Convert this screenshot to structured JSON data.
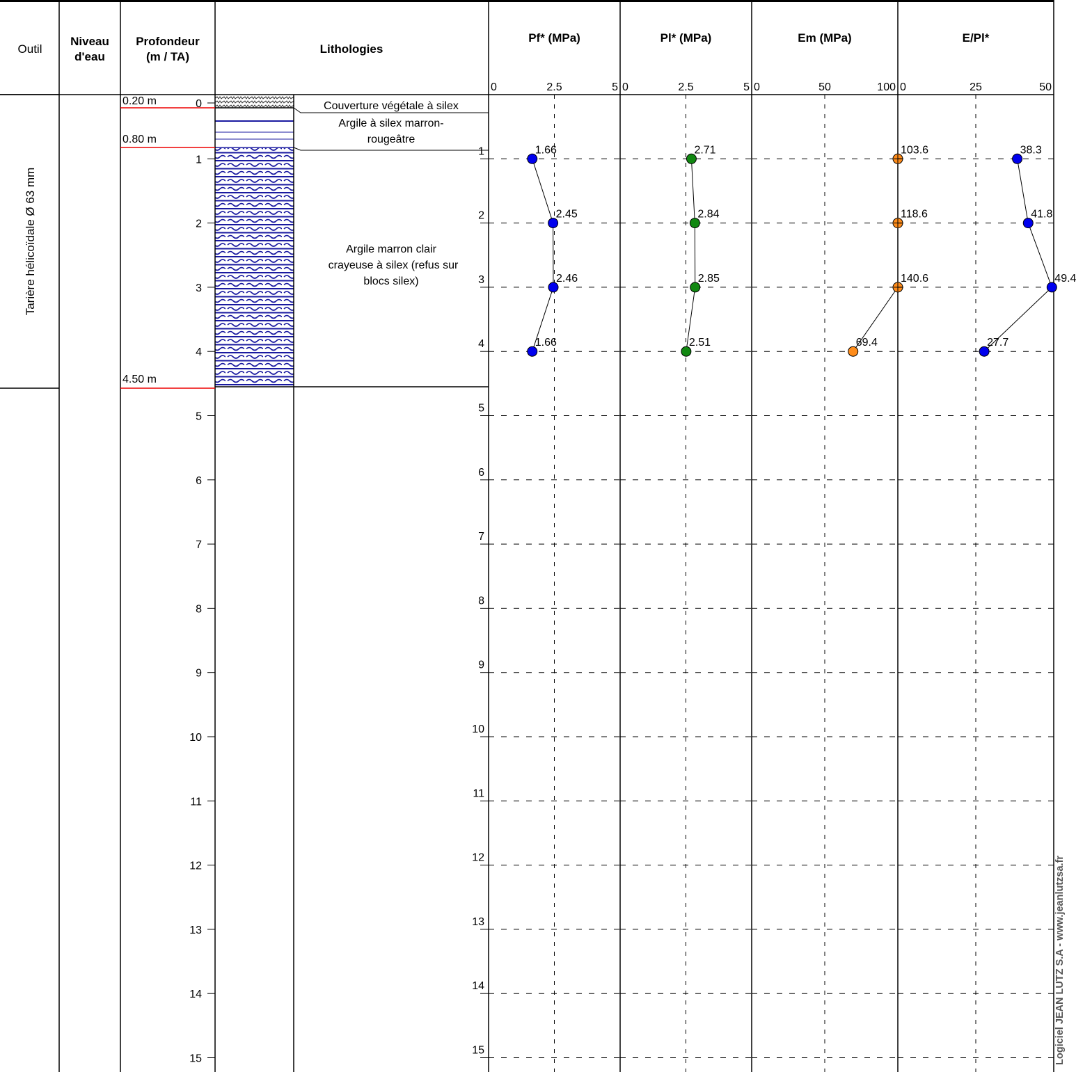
{
  "headers": {
    "outil": "Outil",
    "niveau_line1": "Niveau",
    "niveau_line2": "d'eau",
    "prof_line1": "Profondeur",
    "prof_line2": "(m / TA)",
    "lithologies": "Lithologies"
  },
  "tool": "Tarière hélicoïdale Ø 63 mm",
  "watermark": "Logiciel JEAN LUTZ S.A - www.jeanlutzsa.fr",
  "layers": [
    {
      "depth_label": "0.20 m",
      "description": [
        "Couverture végétale à silex"
      ]
    },
    {
      "depth_label": "0.80 m",
      "description": [
        "Argile à silex marron-",
        "rougeâtre"
      ]
    },
    {
      "depth_label": "4.50 m",
      "description": [
        "Argile marron clair",
        "crayeuse à silex (refus sur",
        "blocs silex)"
      ]
    }
  ],
  "chart_data": [
    {
      "type": "scatter",
      "title": "Pf* (MPa)",
      "xlim": [
        0,
        5
      ],
      "ticks": [
        "0",
        "2.5",
        "5"
      ],
      "color": "#0000ee",
      "points": [
        {
          "depth": 1,
          "value": 1.66,
          "label": "1.66"
        },
        {
          "depth": 2,
          "value": 2.45,
          "label": "2.45"
        },
        {
          "depth": 3,
          "value": 2.46,
          "label": "2.46"
        },
        {
          "depth": 4,
          "value": 1.66,
          "label": "1.66"
        }
      ]
    },
    {
      "type": "scatter",
      "title": "Pl* (MPa)",
      "xlim": [
        0,
        5
      ],
      "ticks": [
        "0",
        "2.5",
        "5"
      ],
      "color": "#118811",
      "points": [
        {
          "depth": 1,
          "value": 2.71,
          "label": "2.71"
        },
        {
          "depth": 2,
          "value": 2.84,
          "label": "2.84"
        },
        {
          "depth": 3,
          "value": 2.85,
          "label": "2.85"
        },
        {
          "depth": 4,
          "value": 2.51,
          "label": "2.51"
        }
      ]
    },
    {
      "type": "scatter",
      "title": "Em (MPa)",
      "xlim": [
        0,
        100
      ],
      "ticks": [
        "0",
        "50",
        "100"
      ],
      "color": "#ff8c1a",
      "points": [
        {
          "depth": 1,
          "value": 103.6,
          "label": "103.6"
        },
        {
          "depth": 2,
          "value": 118.6,
          "label": "118.6"
        },
        {
          "depth": 3,
          "value": 140.6,
          "label": "140.6"
        },
        {
          "depth": 4,
          "value": 69.4,
          "label": "69.4"
        }
      ]
    },
    {
      "type": "scatter",
      "title": "E/Pl*",
      "xlim": [
        0,
        50
      ],
      "ticks": [
        "0",
        "25",
        "50"
      ],
      "color": "#0000ee",
      "points": [
        {
          "depth": 1,
          "value": 38.3,
          "label": "38.3"
        },
        {
          "depth": 2,
          "value": 41.8,
          "label": "41.8"
        },
        {
          "depth": 3,
          "value": 49.4,
          "label": "49.4"
        },
        {
          "depth": 4,
          "value": 27.7,
          "label": "27.7"
        }
      ]
    }
  ],
  "depth_ticks": [
    "0",
    "1",
    "2",
    "3",
    "4",
    "5",
    "6",
    "7",
    "8",
    "9",
    "10",
    "11",
    "12",
    "13",
    "14",
    "15"
  ]
}
